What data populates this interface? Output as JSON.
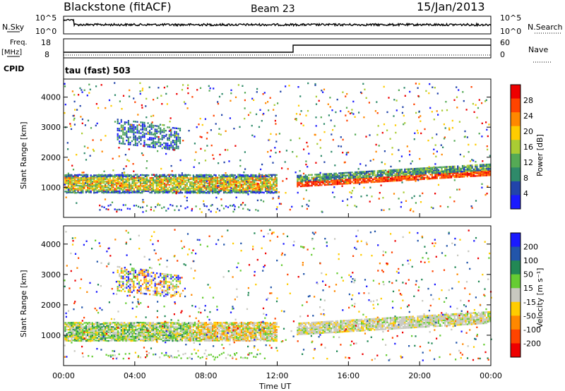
{
  "header": {
    "station": "Blackstone (fitACF)",
    "beam": "Beam 23",
    "date": "15/Jan/2013"
  },
  "top_panels": {
    "nsky_label": "N.Sky",
    "nsky_ticks": [
      "10^5",
      "10^0"
    ],
    "nsearch_label": "N.Search",
    "nsearch_ticks": [
      "10^5",
      "10^0"
    ],
    "freq_label_line1": "Freq.",
    "freq_label_line2": "[MHz]",
    "freq_ticks": [
      "18",
      "8"
    ],
    "nave_label": "Nave",
    "nave_ticks": [
      "60",
      "0"
    ],
    "cpid_label": "CPID",
    "cpid_text": "tau (fast) 503"
  },
  "colors": {
    "power": [
      "#1a1aff",
      "#2244aa",
      "#2f8a6a",
      "#55aa55",
      "#aacc33",
      "#ffcc00",
      "#ff8800",
      "#ff4400",
      "#ee0000"
    ],
    "velocity": [
      "#1a1aff",
      "#2255aa",
      "#228855",
      "#66cc33",
      "#c8c8c0",
      "#ffcc00",
      "#ff8800",
      "#ff4400",
      "#ee0000"
    ]
  },
  "chart_data": [
    {
      "type": "heatmap",
      "name": "power",
      "ylabel": "Slant Range [km]",
      "yticks": [
        "1000",
        "2000",
        "3000",
        "4000"
      ],
      "ylim": [
        0,
        4600
      ],
      "xlim": [
        0,
        24
      ],
      "colorbar_label": "Power [dB]",
      "colorbar_ticks": [
        "4",
        "8",
        "12",
        "16",
        "20",
        "24",
        "28"
      ]
    },
    {
      "type": "heatmap",
      "name": "velocity",
      "ylabel": "Slant Range [km]",
      "yticks": [
        "1000",
        "2000",
        "3000",
        "4000"
      ],
      "ylim": [
        0,
        4600
      ],
      "xlim": [
        0,
        24
      ],
      "colorbar_label": "Velocity [m s⁻¹]",
      "colorbar_ticks": [
        "200",
        "100",
        "50",
        "15",
        "-15",
        "-50",
        "-100",
        "-200"
      ]
    }
  ],
  "x_axis": {
    "label": "Time UT",
    "ticks": [
      "00:00",
      "04:00",
      "08:00",
      "12:00",
      "16:00",
      "20:00",
      "00:00"
    ]
  }
}
